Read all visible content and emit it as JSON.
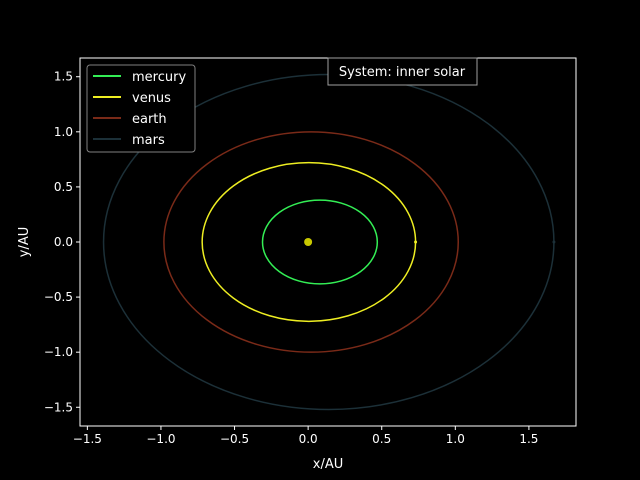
{
  "chart_data": {
    "type": "line",
    "title": "",
    "xlabel": "x/AU",
    "ylabel": "y/AU",
    "xlim": [
      -1.55,
      1.82
    ],
    "ylim": [
      -1.67,
      1.67
    ],
    "xticks": [
      -1.5,
      -1.0,
      -0.5,
      0.0,
      0.5,
      1.0,
      1.5
    ],
    "xtick_labels": [
      "−1.5",
      "−1.0",
      "−0.5",
      "0.0",
      "0.5",
      "1.0",
      "1.5"
    ],
    "yticks": [
      -1.5,
      -1.0,
      -0.5,
      0.0,
      0.5,
      1.0,
      1.5
    ],
    "ytick_labels": [
      "−1.5",
      "−1.0",
      "−0.5",
      "0.0",
      "0.5",
      "1.0",
      "1.5"
    ],
    "grid": false,
    "legend_position": "upper-left",
    "annotation": "System: inner solar",
    "sun": {
      "x": 0.0,
      "y": 0.0,
      "color": "#c8c800"
    },
    "series": [
      {
        "name": "mercury",
        "color": "#33ee55",
        "x_min": -0.31,
        "x_max": 0.47,
        "y_max": 0.38,
        "marker_x": null
      },
      {
        "name": "venus",
        "color": "#eeee22",
        "x_min": -0.72,
        "x_max": 0.73,
        "y_max": 0.72,
        "marker_x": 0.73
      },
      {
        "name": "earth",
        "color": "#7a2a18",
        "x_min": -0.98,
        "x_max": 1.02,
        "y_max": 1.0,
        "marker_x": null
      },
      {
        "name": "mars",
        "color": "#1c3038",
        "x_min": -1.39,
        "x_max": 1.67,
        "y_max": 1.52,
        "marker_x": 1.67
      }
    ]
  }
}
